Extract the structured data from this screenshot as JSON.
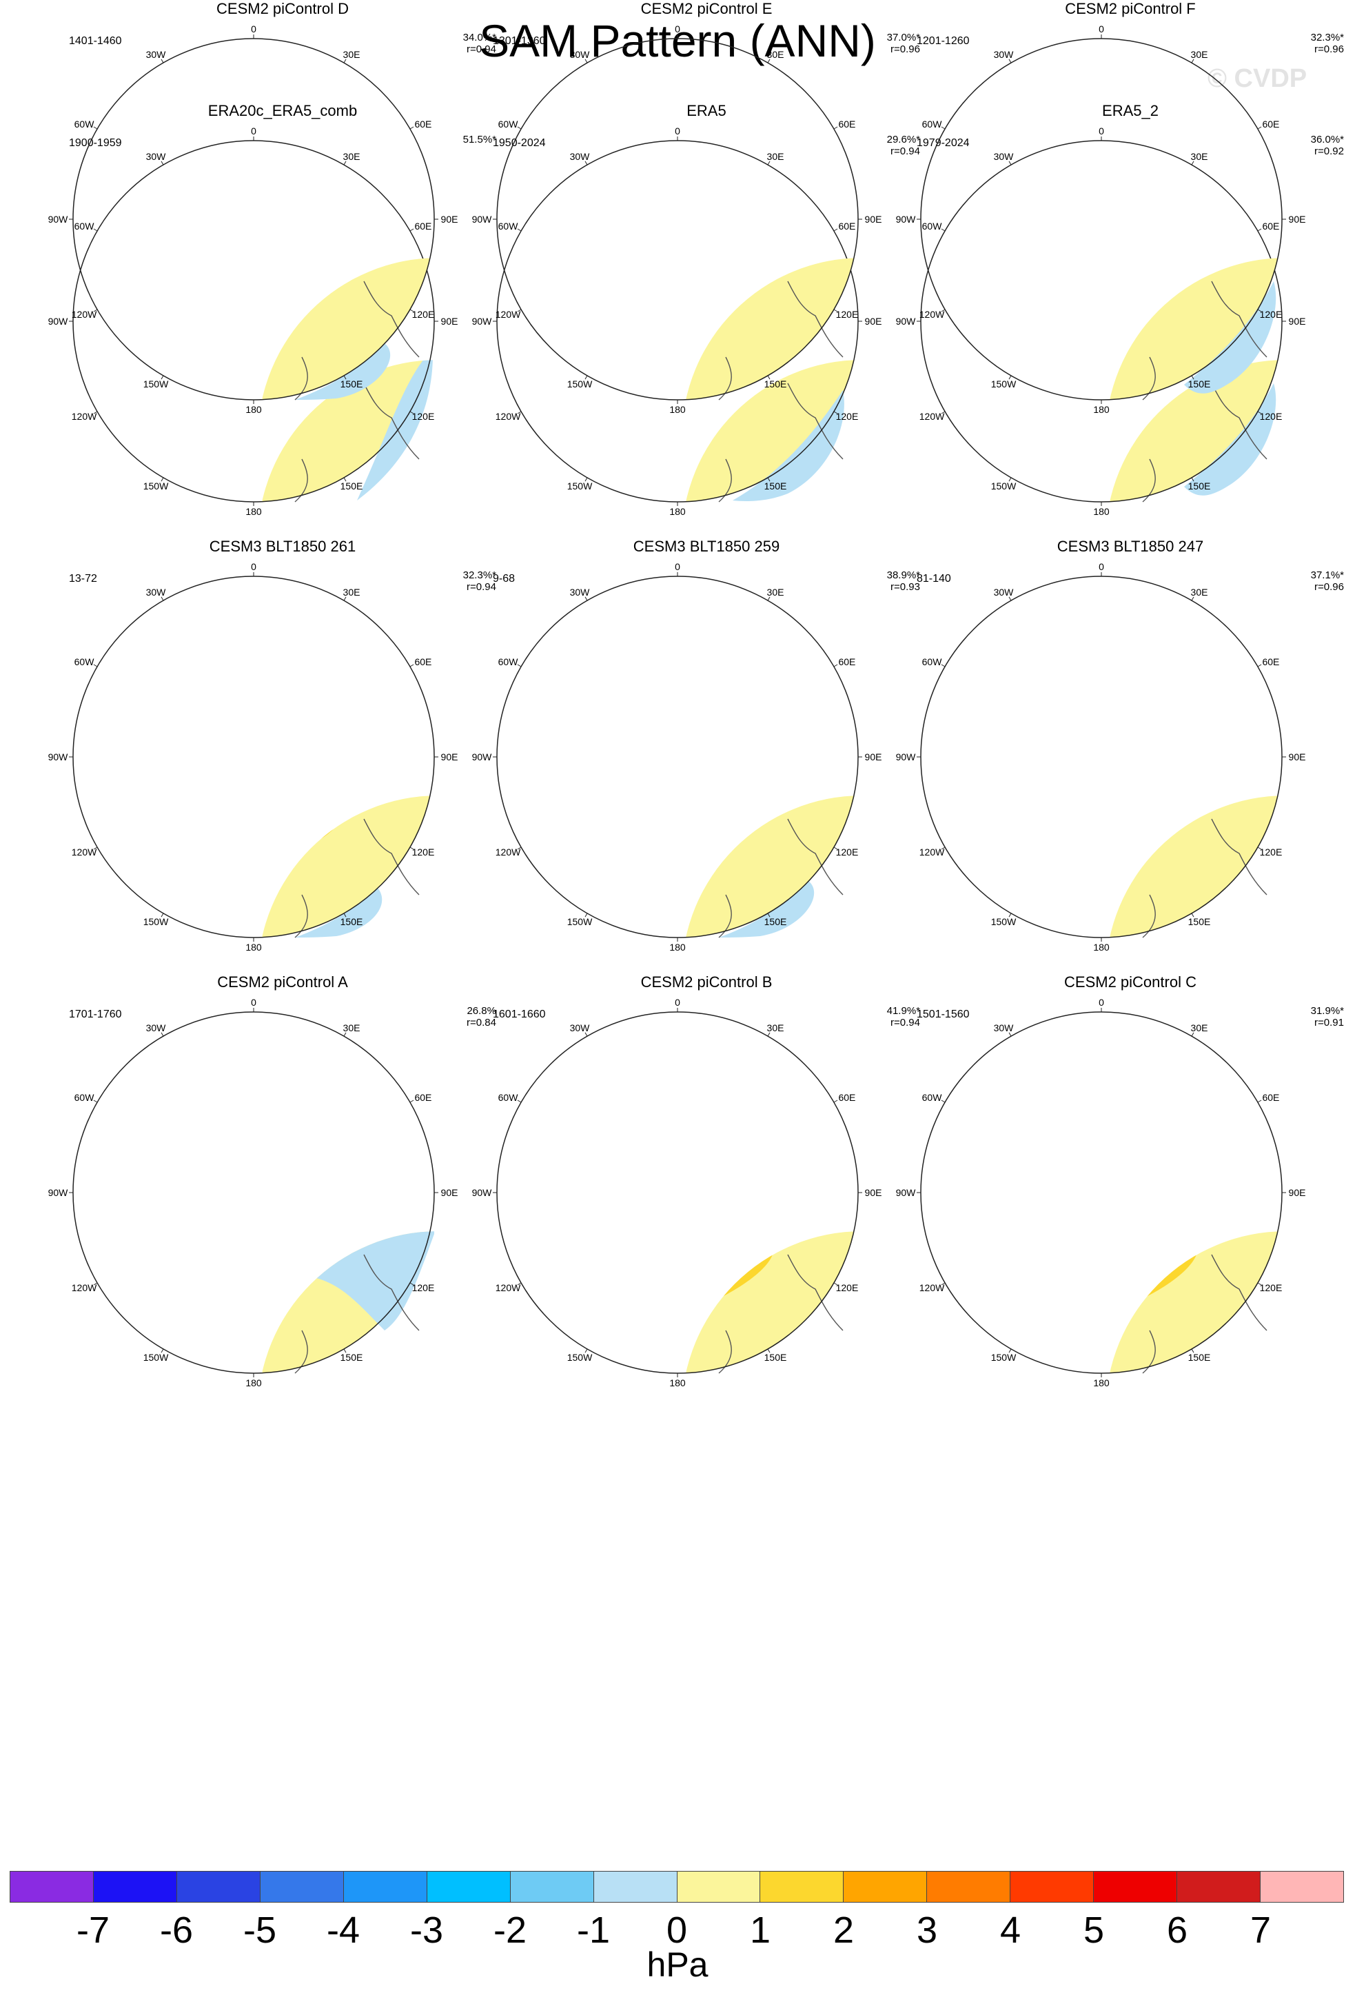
{
  "title": "SAM Pattern (ANN)",
  "watermark": "© CVDP",
  "units": "hPa",
  "longitude_labels": [
    "0",
    "30E",
    "60E",
    "90E",
    "120E",
    "150E",
    "180",
    "150W",
    "120W",
    "90W",
    "60W",
    "30W"
  ],
  "colorbar": {
    "ticks": [
      "-7",
      "-6",
      "-5",
      "-4",
      "-3",
      "-2",
      "-1",
      "0",
      "1",
      "2",
      "3",
      "4",
      "5",
      "6",
      "7"
    ],
    "colors": [
      "#8a2be2",
      "#1c12f5",
      "#2a43e3",
      "#3578ea",
      "#1e96f8",
      "#00bfff",
      "#6ecbf4",
      "#b8e0f5",
      "#fbf59b",
      "#fcd72e",
      "#ffa500",
      "#ff7c00",
      "#ff3a00",
      "#ee0000",
      "#d11c1c",
      "#ffb6b6"
    ]
  },
  "panels": [
    {
      "title": "ERA20c_ERA5_comb",
      "period": "1900-1959",
      "pct": "51.5%*",
      "r": "",
      "pattern": "era20c"
    },
    {
      "title": "ERA5",
      "period": "1950-2024",
      "pct": "29.6%*",
      "r": "r=0.94",
      "pattern": "era5"
    },
    {
      "title": "ERA5_2",
      "period": "1979-2024",
      "pct": "36.0%*",
      "r": "r=0.92",
      "pattern": "era5b"
    },
    {
      "title": "CESM3 BLT1850 261",
      "period": "13-72",
      "pct": "32.3%*",
      "r": "r=0.94",
      "pattern": "cesm3a"
    },
    {
      "title": "CESM3 BLT1850 259",
      "period": "9-68",
      "pct": "38.9%*",
      "r": "r=0.93",
      "pattern": "cesm3b"
    },
    {
      "title": "CESM3 BLT1850 247",
      "period": "81-140",
      "pct": "37.1%*",
      "r": "r=0.96",
      "pattern": "cesm3c"
    },
    {
      "title": "CESM2 piControl A",
      "period": "1701-1760",
      "pct": "26.8%",
      "r": "r=0.84",
      "pattern": "pcA"
    },
    {
      "title": "CESM2 piControl B",
      "period": "1601-1660",
      "pct": "41.9%*",
      "r": "r=0.94",
      "pattern": "pcB"
    },
    {
      "title": "CESM2 piControl C",
      "period": "1501-1560",
      "pct": "31.9%*",
      "r": "r=0.91",
      "pattern": "pcC"
    },
    {
      "title": "CESM2 piControl D",
      "period": "1401-1460",
      "pct": "34.0%*",
      "r": "r=0.94",
      "pattern": "pcD"
    },
    {
      "title": "CESM2 piControl E",
      "period": "1301-1360",
      "pct": "37.0%*",
      "r": "r=0.96",
      "pattern": "pcE"
    },
    {
      "title": "CESM2 piControl F",
      "period": "1201-1260",
      "pct": "32.3%*",
      "r": "r=0.96",
      "pattern": "pcF"
    }
  ]
}
